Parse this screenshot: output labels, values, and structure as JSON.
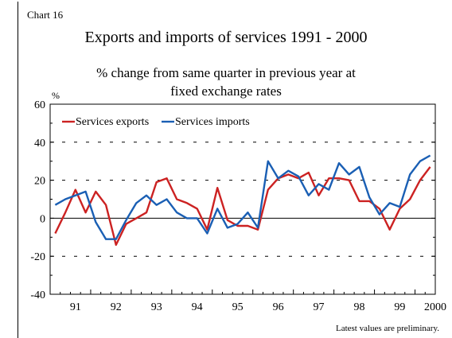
{
  "chart_label": "Chart 16",
  "note": "Latest values are preliminary.",
  "chart_data": {
    "type": "line",
    "title": "Exports and imports of services 1991 - 2000",
    "subtitle_lines": [
      "% change from same quarter in previous year at",
      "fixed exchange rates"
    ],
    "ylabel": "%",
    "xlabel": "",
    "ylim": [
      -40,
      60
    ],
    "yticks": [
      -40,
      -20,
      0,
      20,
      40,
      60
    ],
    "gridlines": [
      -20,
      20,
      40
    ],
    "grid_style": "dashed",
    "legend": "top-left",
    "x_tick_labels": [
      "91",
      "92",
      "93",
      "94",
      "95",
      "96",
      "97",
      "98",
      "99",
      "2000"
    ],
    "x_tick_quarters": [
      2.5,
      6.5,
      10.5,
      14.5,
      18.5,
      22.5,
      26.5,
      30.5,
      34.5,
      38
    ],
    "series": [
      {
        "name": "Services exports",
        "color": "#cc2222",
        "values": [
          -8,
          3,
          15,
          3,
          14,
          7,
          -14,
          -3,
          0,
          3,
          19,
          21,
          10,
          8,
          5,
          -6,
          16,
          -1,
          -4,
          -4,
          -6,
          15,
          21,
          23,
          21,
          24,
          12,
          21,
          21,
          20,
          9,
          9,
          5,
          -6,
          5,
          10,
          20,
          27
        ]
      },
      {
        "name": "Services imports",
        "color": "#1a5fb4",
        "values": [
          7,
          10,
          12,
          14,
          -2,
          -11,
          -11,
          -1,
          8,
          12,
          7,
          10,
          3,
          0,
          0,
          -8,
          5,
          -5,
          -3,
          3,
          -5,
          30,
          21,
          25,
          22,
          12,
          18,
          15,
          29,
          23,
          27,
          11,
          2,
          8,
          6,
          23,
          30,
          33
        ]
      }
    ]
  }
}
